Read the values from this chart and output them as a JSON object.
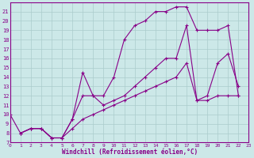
{
  "xlabel": "Windchill (Refroidissement éolien,°C)",
  "bg_color": "#cce8e8",
  "line_color": "#880088",
  "grid_color": "#aacccc",
  "xlim": [
    0,
    23
  ],
  "ylim": [
    7,
    22
  ],
  "xticks": [
    0,
    1,
    2,
    3,
    4,
    5,
    6,
    7,
    8,
    9,
    10,
    11,
    12,
    13,
    14,
    15,
    16,
    17,
    18,
    19,
    20,
    21,
    22,
    23
  ],
  "yticks": [
    7,
    8,
    9,
    10,
    11,
    12,
    13,
    14,
    15,
    16,
    17,
    18,
    19,
    20,
    21
  ],
  "curve1_x": [
    0,
    1,
    2,
    3,
    4,
    5,
    6,
    7,
    8,
    9,
    10,
    11,
    12,
    13,
    14,
    15,
    16,
    17,
    18,
    19,
    20,
    21,
    22
  ],
  "curve1_y": [
    10,
    8,
    8.5,
    8.5,
    7.5,
    7.5,
    9.5,
    12,
    12,
    12,
    14,
    18,
    19.5,
    20,
    21,
    21,
    21.5,
    21.5,
    19,
    19,
    19,
    19.5,
    12
  ],
  "curve2_x": [
    1,
    2,
    3,
    4,
    5,
    6,
    7,
    8,
    9,
    10,
    11,
    12,
    13,
    14,
    15,
    16,
    17,
    18,
    19,
    20,
    21,
    22
  ],
  "curve2_y": [
    8,
    8.5,
    8.5,
    7.5,
    7.5,
    9.5,
    14.5,
    12,
    11,
    11.5,
    12,
    13,
    14,
    15,
    16,
    16,
    19.5,
    11.5,
    12,
    15.5,
    16.5,
    13
  ],
  "curve3_x": [
    1,
    2,
    3,
    4,
    5,
    6,
    7,
    8,
    9,
    10,
    11,
    12,
    13,
    14,
    15,
    16,
    17,
    18,
    19,
    20,
    21,
    22
  ],
  "curve3_y": [
    8,
    8.5,
    8.5,
    7.5,
    7.5,
    8.5,
    9.5,
    10,
    10.5,
    11,
    11.5,
    12,
    12.5,
    13,
    13.5,
    14,
    15.5,
    11.5,
    11.5,
    12,
    12,
    12
  ]
}
